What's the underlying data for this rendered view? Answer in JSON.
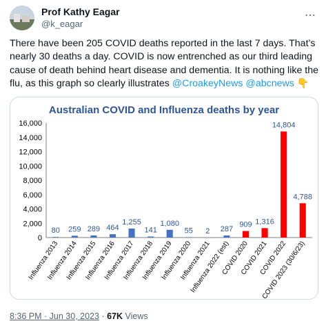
{
  "tweet": {
    "display_name": "Prof Kathy Eagar",
    "handle": "@k_eagar",
    "more_icon": "ellipsis-icon",
    "text_lines": [
      "There have been 205 COVID deaths reported in the last 7 days. That’s",
      "nearly 30 deaths a day. COVID is now entrenched as our third leading",
      "cause of death behind heart disease and dementia. It is nothing like the",
      "flu, as this graph so clearly illustrates"
    ],
    "mention1": "@CroakeyNews",
    "mention2": "@abcnews",
    "emoji": "👇"
  },
  "footer": {
    "time": "8:36 PM · Jun 30, 2023",
    "separator": "·",
    "views_count": "67K",
    "views_label": "Views"
  },
  "chart_data": {
    "type": "bar",
    "title": "Australian COVID and Influenza deaths by year",
    "categories": [
      "Influenza 2013",
      "Influenza 2014",
      "Influenza 2015",
      "Influenza 2016",
      "Influenza 2017",
      "Influenza 2018",
      "Influenza 2019",
      "Influenza 2020",
      "Influenza 2021",
      "Influenza 2022 (est)",
      "COVID 2020",
      "COVID 2021",
      "COVID 2022",
      "COVID 2023 (30/6/23)"
    ],
    "values": [
      80,
      259,
      289,
      464,
      1255,
      141,
      1080,
      55,
      2,
      287,
      909,
      1316,
      14804,
      4788
    ],
    "data_labels": [
      "80",
      "259",
      "289",
      "464",
      "1,255",
      "141",
      "1,080",
      "55",
      "2",
      "287",
      "909",
      "1,316",
      "14,804",
      "4,788"
    ],
    "colors": [
      "#4472c4",
      "#4472c4",
      "#4472c4",
      "#4472c4",
      "#4472c4",
      "#4472c4",
      "#4472c4",
      "#4472c4",
      "#4472c4",
      "#4472c4",
      "#ff0000",
      "#ff0000",
      "#ff0000",
      "#ff0000"
    ],
    "ylim": [
      0,
      16000
    ],
    "yticks": [
      0,
      2000,
      4000,
      6000,
      8000,
      10000,
      12000,
      14000,
      16000
    ],
    "ytick_labels": [
      "0",
      "2,000",
      "4,000",
      "6,000",
      "8,000",
      "10,000",
      "12,000",
      "14,000",
      "16,000"
    ],
    "xlabel": "",
    "ylabel": "",
    "grid": false,
    "title_color": "#2f5597",
    "label_color": "#2f5597"
  }
}
